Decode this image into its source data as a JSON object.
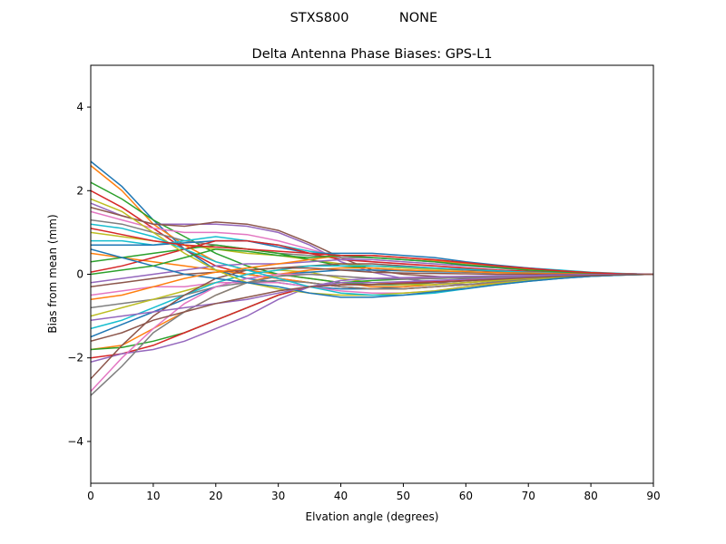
{
  "suptitle_left": "STXS800",
  "suptitle_right": "NONE",
  "chart_data": {
    "type": "line",
    "title": "Delta Antenna Phase Biases: GPS-L1",
    "xlabel": "Elvation angle (degrees)",
    "ylabel": "Bias from mean (mm)",
    "xlim": [
      0,
      90
    ],
    "ylim": [
      -5,
      5
    ],
    "x_ticks": [
      0,
      10,
      20,
      30,
      40,
      50,
      60,
      70,
      80,
      90
    ],
    "x_tick_labels": [
      "0",
      "10",
      "20",
      "30",
      "40",
      "50",
      "60",
      "70",
      "80",
      "90"
    ],
    "y_ticks": [
      -4,
      -2,
      0,
      2,
      4
    ],
    "y_tick_labels": [
      "−4",
      "−2",
      "0",
      "2",
      "4"
    ],
    "grid": false,
    "legend": "none",
    "colors": [
      "#1f77b4",
      "#ff7f0e",
      "#2ca02c",
      "#d62728",
      "#9467bd",
      "#8c564b",
      "#e377c2",
      "#7f7f7f",
      "#bcbd22",
      "#17becf"
    ],
    "x": [
      0,
      5,
      10,
      15,
      20,
      25,
      30,
      35,
      40,
      45,
      50,
      55,
      60,
      65,
      70,
      75,
      80,
      85,
      90
    ],
    "series": [
      {
        "values": [
          2.7,
          2.1,
          1.3,
          0.6,
          0.1,
          -0.1,
          -0.2,
          -0.3,
          -0.35,
          -0.35,
          -0.3,
          -0.25,
          -0.2,
          -0.15,
          -0.1,
          -0.05,
          -0.03,
          -0.01,
          0
        ]
      },
      {
        "values": [
          2.6,
          2.0,
          1.2,
          0.7,
          0.3,
          0.1,
          0.0,
          -0.1,
          -0.2,
          -0.3,
          -0.3,
          -0.25,
          -0.2,
          -0.15,
          -0.1,
          -0.06,
          -0.03,
          -0.01,
          0
        ]
      },
      {
        "values": [
          2.2,
          1.8,
          1.3,
          0.9,
          0.5,
          0.2,
          0.0,
          -0.1,
          -0.2,
          -0.25,
          -0.25,
          -0.2,
          -0.15,
          -0.12,
          -0.08,
          -0.05,
          -0.03,
          -0.01,
          0
        ]
      },
      {
        "values": [
          2.0,
          1.6,
          1.1,
          0.6,
          0.2,
          0.0,
          -0.1,
          -0.2,
          -0.3,
          -0.35,
          -0.35,
          -0.3,
          -0.25,
          -0.2,
          -0.13,
          -0.08,
          -0.04,
          -0.01,
          0
        ]
      },
      {
        "values": [
          1.7,
          1.4,
          1.2,
          1.2,
          1.2,
          1.15,
          1.0,
          0.7,
          0.3,
          0.05,
          -0.1,
          -0.2,
          -0.25,
          -0.2,
          -0.15,
          -0.1,
          -0.05,
          -0.02,
          0
        ]
      },
      {
        "values": [
          1.6,
          1.4,
          1.2,
          1.15,
          1.25,
          1.2,
          1.05,
          0.75,
          0.4,
          0.1,
          0.0,
          -0.05,
          -0.1,
          -0.1,
          -0.08,
          -0.05,
          -0.03,
          -0.01,
          0
        ]
      },
      {
        "values": [
          1.5,
          1.3,
          1.1,
          1.0,
          1.0,
          0.95,
          0.8,
          0.6,
          0.4,
          0.3,
          0.25,
          0.2,
          0.15,
          0.1,
          0.07,
          0.04,
          0.02,
          0.01,
          0
        ]
      },
      {
        "values": [
          1.3,
          1.2,
          1.0,
          0.8,
          0.7,
          0.6,
          0.5,
          0.45,
          0.4,
          0.4,
          0.35,
          0.3,
          0.25,
          0.18,
          0.12,
          0.07,
          0.03,
          0.01,
          0
        ]
      },
      {
        "values": [
          1.0,
          0.9,
          0.8,
          0.7,
          0.6,
          0.5,
          0.45,
          0.35,
          0.25,
          0.2,
          0.15,
          0.12,
          0.1,
          0.08,
          0.05,
          0.03,
          0.02,
          0.01,
          0
        ]
      },
      {
        "values": [
          0.8,
          0.8,
          0.7,
          0.8,
          0.9,
          0.8,
          0.7,
          0.55,
          0.45,
          0.4,
          0.35,
          0.3,
          0.25,
          0.2,
          0.15,
          0.1,
          0.05,
          0.02,
          0
        ]
      },
      {
        "values": [
          0.7,
          0.7,
          0.7,
          0.75,
          0.8,
          0.8,
          0.65,
          0.5,
          0.5,
          0.5,
          0.45,
          0.4,
          0.3,
          0.22,
          0.15,
          0.09,
          0.04,
          0.01,
          0
        ]
      },
      {
        "values": [
          0.5,
          0.4,
          0.3,
          0.2,
          0.1,
          0.0,
          -0.1,
          -0.2,
          -0.3,
          -0.35,
          -0.35,
          -0.3,
          -0.25,
          -0.2,
          -0.13,
          -0.08,
          -0.04,
          -0.01,
          0
        ]
      },
      {
        "values": [
          0.3,
          0.4,
          0.5,
          0.6,
          0.7,
          0.6,
          0.5,
          0.35,
          0.2,
          0.15,
          0.1,
          0.08,
          0.06,
          0.04,
          0.03,
          0.02,
          0.01,
          0.0,
          0
        ]
      },
      {
        "values": [
          0.05,
          0.2,
          0.4,
          0.6,
          0.8,
          0.8,
          0.7,
          0.5,
          0.35,
          0.3,
          0.25,
          0.2,
          0.15,
          0.1,
          0.07,
          0.04,
          0.02,
          0.01,
          0
        ]
      },
      {
        "values": [
          -0.2,
          -0.1,
          0.0,
          0.1,
          0.2,
          0.25,
          0.25,
          0.3,
          0.35,
          0.35,
          0.3,
          0.25,
          0.2,
          0.15,
          0.1,
          0.06,
          0.03,
          0.01,
          0
        ]
      },
      {
        "values": [
          -0.3,
          -0.2,
          -0.1,
          0.0,
          0.05,
          0.1,
          0.15,
          0.2,
          0.25,
          0.25,
          0.2,
          0.15,
          0.1,
          0.07,
          0.05,
          0.03,
          0.02,
          0.01,
          0
        ]
      },
      {
        "values": [
          -0.5,
          -0.4,
          -0.3,
          -0.3,
          -0.2,
          -0.2,
          -0.2,
          -0.3,
          -0.4,
          -0.45,
          -0.45,
          -0.4,
          -0.3,
          -0.22,
          -0.15,
          -0.09,
          -0.05,
          -0.02,
          0
        ]
      },
      {
        "values": [
          -0.8,
          -0.7,
          -0.6,
          -0.5,
          -0.3,
          -0.2,
          -0.15,
          -0.2,
          -0.3,
          -0.35,
          -0.35,
          -0.3,
          -0.25,
          -0.18,
          -0.12,
          -0.07,
          -0.04,
          -0.01,
          0
        ]
      },
      {
        "values": [
          -1.0,
          -0.8,
          -0.6,
          -0.4,
          -0.2,
          0.0,
          0.1,
          0.05,
          -0.1,
          -0.2,
          -0.25,
          -0.25,
          -0.2,
          -0.15,
          -0.1,
          -0.06,
          -0.03,
          -0.01,
          0
        ]
      },
      {
        "values": [
          -1.3,
          -1.1,
          -0.8,
          -0.5,
          -0.2,
          0.0,
          0.1,
          0.2,
          0.2,
          0.2,
          0.18,
          0.15,
          0.12,
          0.08,
          0.05,
          0.03,
          0.02,
          0.01,
          0
        ]
      },
      {
        "values": [
          -1.5,
          -1.2,
          -0.9,
          -0.6,
          -0.3,
          -0.1,
          0.0,
          0.05,
          0.1,
          0.1,
          0.08,
          0.06,
          0.05,
          0.04,
          0.03,
          0.02,
          0.01,
          0.0,
          0
        ]
      },
      {
        "values": [
          -1.8,
          -1.7,
          -1.3,
          -0.9,
          -0.5,
          -0.2,
          0.0,
          0.1,
          0.15,
          0.15,
          0.1,
          0.08,
          0.06,
          0.04,
          0.03,
          0.02,
          0.01,
          0.0,
          0
        ]
      },
      {
        "values": [
          -1.8,
          -1.75,
          -1.6,
          -1.4,
          -1.1,
          -0.8,
          -0.5,
          -0.3,
          -0.2,
          -0.15,
          -0.12,
          -0.1,
          -0.08,
          -0.06,
          -0.04,
          -0.03,
          -0.02,
          -0.01,
          0
        ]
      },
      {
        "values": [
          -2.0,
          -1.9,
          -1.7,
          -1.4,
          -1.1,
          -0.8,
          -0.5,
          -0.3,
          -0.25,
          -0.25,
          -0.2,
          -0.18,
          -0.15,
          -0.1,
          -0.07,
          -0.04,
          -0.02,
          -0.01,
          0
        ]
      },
      {
        "values": [
          -2.1,
          -1.9,
          -1.8,
          -1.6,
          -1.3,
          -1.0,
          -0.6,
          -0.3,
          -0.2,
          -0.2,
          -0.18,
          -0.15,
          -0.12,
          -0.09,
          -0.06,
          -0.04,
          -0.02,
          -0.01,
          0
        ]
      },
      {
        "values": [
          -2.5,
          -1.7,
          -1.0,
          -0.5,
          -0.1,
          0.1,
          0.15,
          0.15,
          0.1,
          0.05,
          0.03,
          0.02,
          0.01,
          0.0,
          0.0,
          0.0,
          0.0,
          0.0,
          0
        ]
      },
      {
        "values": [
          -2.8,
          -2.0,
          -1.3,
          -0.7,
          -0.3,
          -0.1,
          0.0,
          0.0,
          -0.05,
          -0.1,
          -0.1,
          -0.08,
          -0.06,
          -0.05,
          -0.03,
          -0.02,
          -0.01,
          0.0,
          0
        ]
      },
      {
        "values": [
          -2.9,
          -2.2,
          -1.4,
          -0.9,
          -0.5,
          -0.2,
          -0.05,
          0.0,
          -0.05,
          -0.1,
          -0.12,
          -0.1,
          -0.08,
          -0.06,
          -0.04,
          -0.02,
          -0.01,
          0.0,
          0
        ]
      },
      {
        "values": [
          1.8,
          1.5,
          1.0,
          0.5,
          0.1,
          -0.2,
          -0.35,
          -0.45,
          -0.5,
          -0.5,
          -0.45,
          -0.4,
          -0.3,
          -0.22,
          -0.15,
          -0.09,
          -0.05,
          -0.02,
          0
        ]
      },
      {
        "values": [
          1.2,
          1.1,
          0.9,
          0.6,
          0.3,
          0.1,
          -0.1,
          -0.3,
          -0.45,
          -0.5,
          -0.5,
          -0.45,
          -0.35,
          -0.25,
          -0.17,
          -0.1,
          -0.05,
          -0.02,
          0
        ]
      },
      {
        "values": [
          0.6,
          0.4,
          0.2,
          0.0,
          -0.1,
          -0.2,
          -0.3,
          -0.45,
          -0.55,
          -0.55,
          -0.5,
          -0.42,
          -0.34,
          -0.25,
          -0.17,
          -0.1,
          -0.05,
          -0.02,
          0
        ]
      },
      {
        "values": [
          -0.6,
          -0.5,
          -0.3,
          -0.1,
          0.05,
          0.15,
          0.25,
          0.35,
          0.45,
          0.45,
          0.4,
          0.33,
          0.26,
          0.2,
          0.13,
          0.08,
          0.04,
          0.01,
          0
        ]
      },
      {
        "values": [
          0.0,
          0.1,
          0.2,
          0.4,
          0.6,
          0.55,
          0.45,
          0.4,
          0.45,
          0.4,
          0.35,
          0.3,
          0.22,
          0.16,
          0.1,
          0.06,
          0.03,
          0.01,
          0
        ]
      },
      {
        "values": [
          1.1,
          0.95,
          0.8,
          0.7,
          0.65,
          0.6,
          0.55,
          0.5,
          0.45,
          0.45,
          0.4,
          0.35,
          0.28,
          0.2,
          0.14,
          0.08,
          0.04,
          0.01,
          0
        ]
      },
      {
        "values": [
          -1.1,
          -1.0,
          -0.9,
          -0.8,
          -0.7,
          -0.6,
          -0.45,
          -0.3,
          -0.15,
          -0.1,
          -0.08,
          -0.06,
          -0.05,
          -0.04,
          -0.03,
          -0.02,
          -0.01,
          0.0,
          0
        ]
      },
      {
        "values": [
          -1.6,
          -1.4,
          -1.1,
          -0.9,
          -0.7,
          -0.55,
          -0.4,
          -0.3,
          -0.25,
          -0.25,
          -0.22,
          -0.2,
          -0.16,
          -0.12,
          -0.08,
          -0.05,
          -0.03,
          -0.01,
          0
        ]
      }
    ]
  }
}
